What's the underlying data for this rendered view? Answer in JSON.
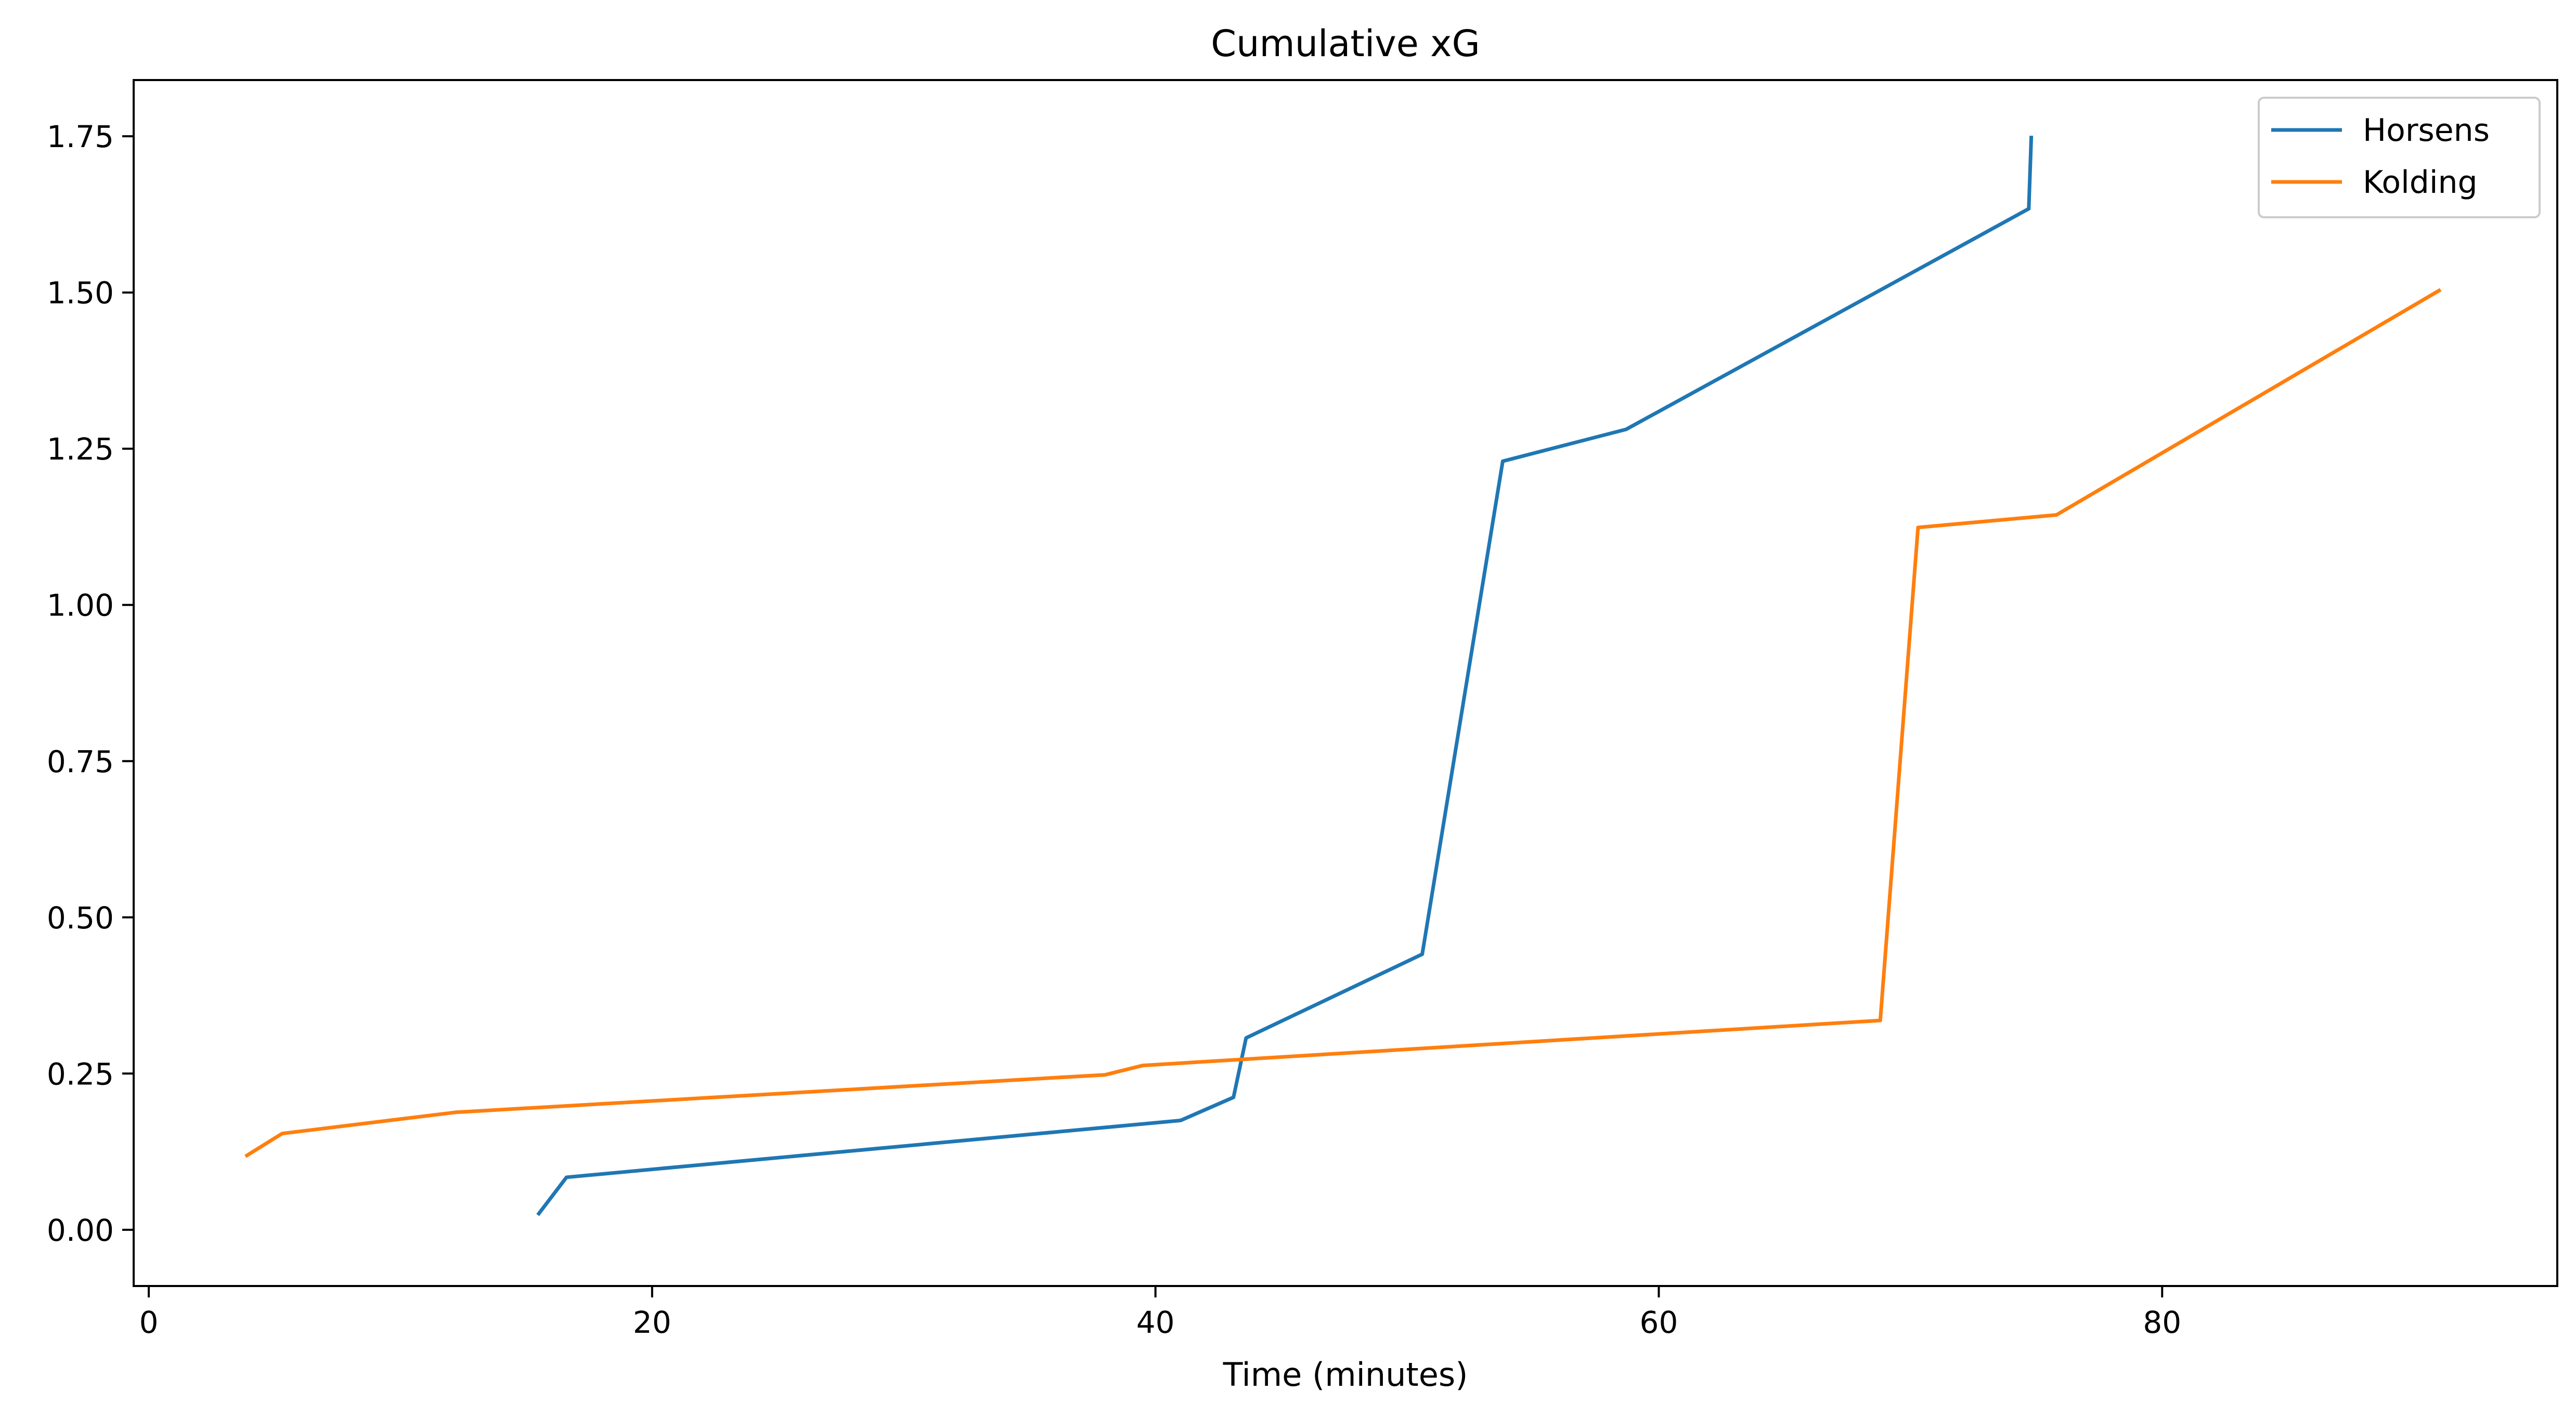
{
  "chart_data": {
    "type": "line",
    "title": "Cumulative xG",
    "xlabel": "Time (minutes)",
    "ylabel": "",
    "xlim": [
      -0.6,
      95.7
    ],
    "ylim": [
      -0.09,
      1.84
    ],
    "xticks": [
      0,
      20,
      40,
      60,
      80
    ],
    "yticks": [
      0.0,
      0.25,
      0.5,
      0.75,
      1.0,
      1.25,
      1.5,
      1.75
    ],
    "xtick_labels": [
      "0",
      "20",
      "40",
      "60",
      "80"
    ],
    "ytick_labels": [
      "0.00",
      "0.25",
      "0.50",
      "0.75",
      "1.00",
      "1.25",
      "1.50",
      "1.75"
    ],
    "grid": false,
    "legend": "top-right",
    "series": [
      {
        "name": "Horsens",
        "color": "#1f77b4",
        "x": [
          15.5,
          16.6,
          41.0,
          43.1,
          43.6,
          50.6,
          53.8,
          58.7,
          74.7,
          74.8
        ],
        "y": [
          0.026,
          0.084,
          0.175,
          0.212,
          0.307,
          0.441,
          1.23,
          1.281,
          1.634,
          1.748
        ]
      },
      {
        "name": "Kolding",
        "color": "#ff7f0e",
        "x": [
          3.9,
          5.3,
          12.2,
          38.0,
          39.5,
          68.8,
          70.3,
          75.8,
          91.0
        ],
        "y": [
          0.119,
          0.154,
          0.188,
          0.248,
          0.263,
          0.335,
          1.124,
          1.144,
          1.503
        ]
      }
    ]
  }
}
